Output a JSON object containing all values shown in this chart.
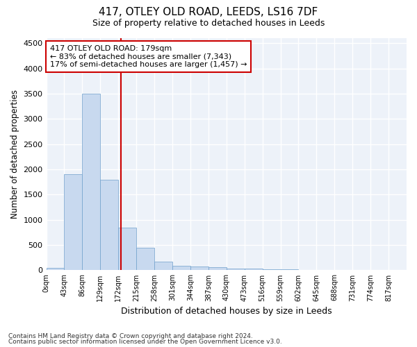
{
  "title": "417, OTLEY OLD ROAD, LEEDS, LS16 7DF",
  "subtitle": "Size of property relative to detached houses in Leeds",
  "xlabel": "Distribution of detached houses by size in Leeds",
  "ylabel": "Number of detached properties",
  "bar_color": "#c8d9ef",
  "bar_edge_color": "#6fa0cc",
  "background_color": "#edf2f9",
  "grid_color": "#ffffff",
  "property_line_x": 179,
  "annotation_text_line1": "417 OTLEY OLD ROAD: 179sqm",
  "annotation_text_line2": "← 83% of detached houses are smaller (7,343)",
  "annotation_text_line3": "17% of semi-detached houses are larger (1,457) →",
  "annotation_box_color": "#cc0000",
  "bin_edges": [
    0,
    43,
    86,
    129,
    172,
    215,
    258,
    301,
    344,
    387,
    430,
    473,
    516,
    559,
    602,
    645,
    688,
    731,
    774,
    817,
    860
  ],
  "bar_heights": [
    50,
    1900,
    3500,
    1800,
    850,
    450,
    175,
    90,
    75,
    55,
    40,
    35,
    20,
    15,
    12,
    10,
    8,
    6,
    5,
    4
  ],
  "ylim": [
    0,
    4600
  ],
  "yticks": [
    0,
    500,
    1000,
    1500,
    2000,
    2500,
    3000,
    3500,
    4000,
    4500
  ],
  "footnote_line1": "Contains HM Land Registry data © Crown copyright and database right 2024.",
  "footnote_line2": "Contains public sector information licensed under the Open Government Licence v3.0."
}
